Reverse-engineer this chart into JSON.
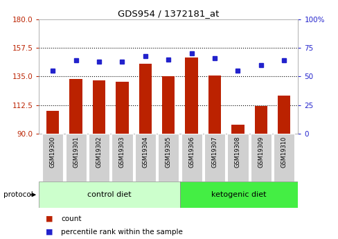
{
  "title": "GDS954 / 1372181_at",
  "samples": [
    "GSM19300",
    "GSM19301",
    "GSM19302",
    "GSM19303",
    "GSM19304",
    "GSM19305",
    "GSM19306",
    "GSM19307",
    "GSM19308",
    "GSM19309",
    "GSM19310"
  ],
  "bar_values": [
    108,
    133,
    132,
    131,
    145,
    135,
    150,
    136,
    97,
    112,
    120
  ],
  "dot_values_pct": [
    55,
    64,
    63,
    63,
    68,
    65,
    70,
    66,
    55,
    60,
    64
  ],
  "ylim_left": [
    90,
    180
  ],
  "ylim_right": [
    0,
    100
  ],
  "yticks_left": [
    90,
    112.5,
    135,
    157.5,
    180
  ],
  "yticks_right": [
    0,
    25,
    50,
    75,
    100
  ],
  "bar_color": "#BB2200",
  "dot_color": "#2222CC",
  "control_label": "control diet",
  "keto_label": "ketogenic diet",
  "protocol_label": "protocol",
  "legend_count": "count",
  "legend_pct": "percentile rank within the sample",
  "control_color": "#CCFFCC",
  "keto_color": "#44EE44",
  "tick_bg_color": "#D0D0D0",
  "n_control": 6,
  "n_keto": 5
}
